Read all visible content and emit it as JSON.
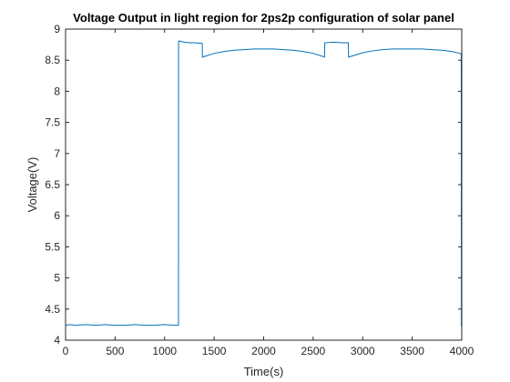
{
  "chart_data": {
    "type": "line",
    "title": "Voltage Output in light region for 2ps2p configuration of solar panel",
    "xlabel": "Time(s)",
    "ylabel": "Voltage(V)",
    "xlim": [
      0,
      4000
    ],
    "ylim": [
      4,
      9
    ],
    "xticks": [
      "0",
      "500",
      "1000",
      "1500",
      "2000",
      "2500",
      "3000",
      "3500",
      "4000"
    ],
    "yticks": [
      "4",
      "4.5",
      "5",
      "5.5",
      "6",
      "6.5",
      "7",
      "7.5",
      "8",
      "8.5",
      "9"
    ],
    "grid": false,
    "line_color": "#0072BD",
    "series": [
      {
        "x": [
          0,
          50,
          100,
          200,
          300,
          400,
          500,
          600,
          700,
          800,
          900,
          1000,
          1100,
          1140,
          1141,
          1145,
          1200,
          1250,
          1300,
          1380,
          1382,
          1500,
          1600,
          1700,
          1800,
          1900,
          2000,
          2100,
          2200,
          2300,
          2400,
          2500,
          2600,
          2615,
          2617,
          2700,
          2800,
          2855,
          2857,
          3000,
          3100,
          3200,
          3300,
          3400,
          3500,
          3600,
          3700,
          3800,
          3900,
          3980,
          3995,
          3997,
          4000
        ],
        "y": [
          4.24,
          4.25,
          4.24,
          4.25,
          4.24,
          4.25,
          4.24,
          4.24,
          4.25,
          4.24,
          4.24,
          4.25,
          4.24,
          4.24,
          8.8,
          8.81,
          8.79,
          8.78,
          8.78,
          8.77,
          8.55,
          8.61,
          8.64,
          8.66,
          8.67,
          8.68,
          8.68,
          8.68,
          8.67,
          8.66,
          8.64,
          8.61,
          8.56,
          8.55,
          8.78,
          8.79,
          8.78,
          8.78,
          8.55,
          8.62,
          8.65,
          8.67,
          8.68,
          8.68,
          8.68,
          8.68,
          8.67,
          8.66,
          8.64,
          8.61,
          8.6,
          4.22,
          8.5
        ]
      }
    ]
  }
}
